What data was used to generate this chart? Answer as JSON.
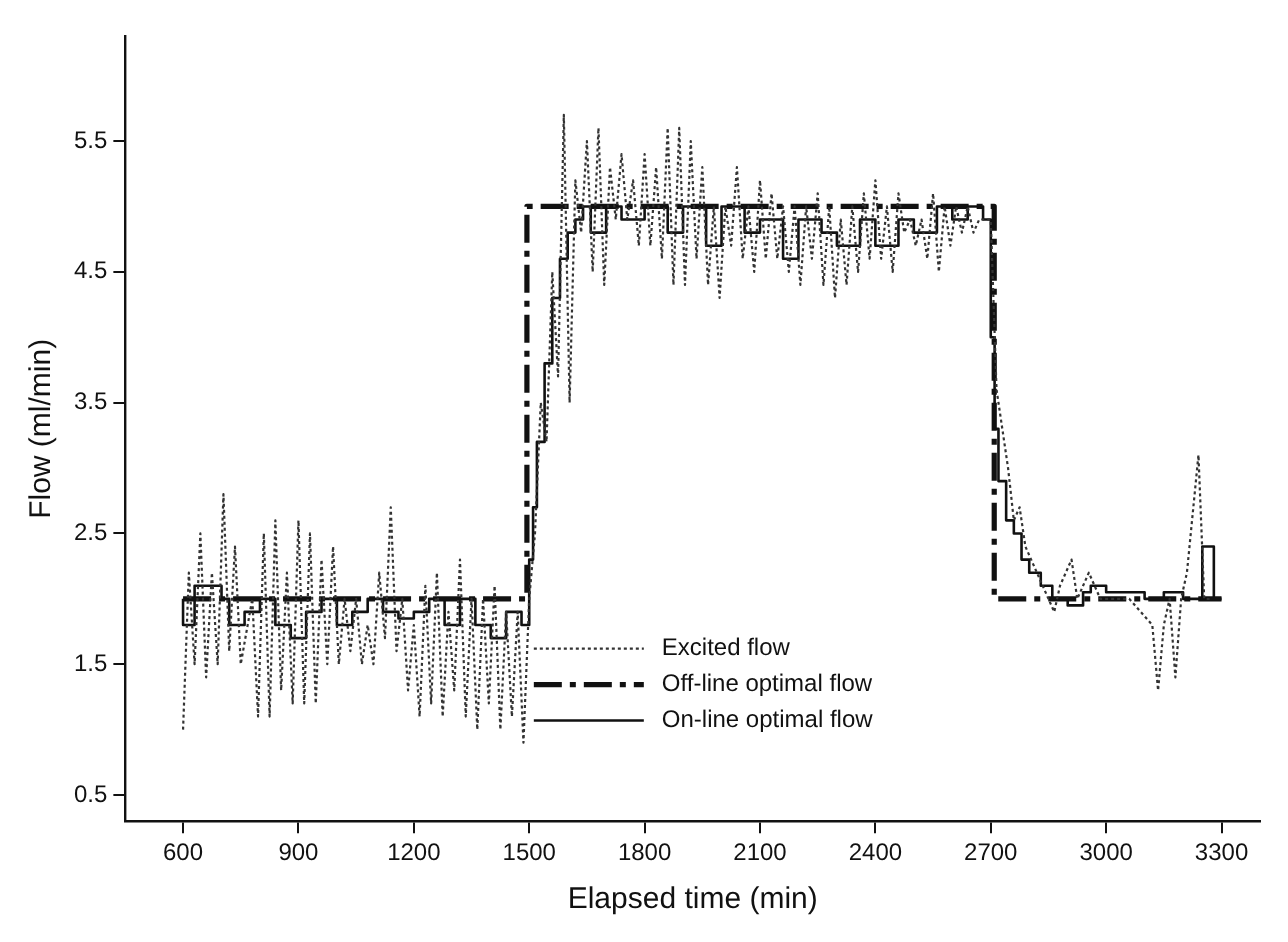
{
  "chart_data": {
    "type": "line",
    "xlabel": "Elapsed time (min)",
    "ylabel": "Flow (ml/min)",
    "xlim": [
      450,
      3400
    ],
    "ylim": [
      0.3,
      6.3
    ],
    "xticks": [
      600,
      900,
      1200,
      1500,
      1800,
      2100,
      2400,
      2700,
      3000,
      3300
    ],
    "yticks": [
      0.5,
      1.5,
      2.5,
      3.5,
      4.5,
      5.5
    ],
    "grid": false,
    "legend": "bottom right",
    "marker": "none",
    "series": [
      {
        "name": "Excited flow",
        "color": "#333333",
        "line_style": "dotted",
        "x": [
          600,
          615,
          630,
          645,
          660,
          675,
          690,
          705,
          720,
          735,
          750,
          780,
          795,
          810,
          825,
          840,
          855,
          870,
          885,
          900,
          915,
          930,
          945,
          960,
          975,
          990,
          1005,
          1020,
          1035,
          1050,
          1065,
          1080,
          1095,
          1110,
          1125,
          1140,
          1155,
          1170,
          1185,
          1200,
          1215,
          1230,
          1245,
          1260,
          1275,
          1290,
          1305,
          1320,
          1335,
          1350,
          1365,
          1380,
          1395,
          1410,
          1425,
          1440,
          1455,
          1470,
          1485,
          1500,
          1515,
          1530,
          1545,
          1560,
          1575,
          1590,
          1605,
          1620,
          1635,
          1650,
          1665,
          1680,
          1695,
          1710,
          1725,
          1740,
          1755,
          1770,
          1785,
          1800,
          1815,
          1830,
          1845,
          1860,
          1875,
          1890,
          1905,
          1920,
          1935,
          1950,
          1965,
          1980,
          1995,
          2010,
          2025,
          2040,
          2055,
          2070,
          2085,
          2100,
          2115,
          2130,
          2145,
          2160,
          2175,
          2190,
          2205,
          2220,
          2235,
          2250,
          2265,
          2280,
          2295,
          2310,
          2325,
          2340,
          2355,
          2370,
          2385,
          2400,
          2415,
          2430,
          2445,
          2460,
          2475,
          2490,
          2505,
          2520,
          2535,
          2550,
          2565,
          2580,
          2595,
          2610,
          2625,
          2640,
          2655,
          2670,
          2685,
          2700,
          2715,
          2730,
          2745,
          2760,
          2775,
          2790,
          2805,
          2820,
          2835,
          2850,
          2865,
          2880,
          2895,
          2910,
          2925,
          2940,
          2955,
          2970,
          2985,
          3000,
          3030,
          3060,
          3090,
          3120,
          3135,
          3150,
          3165,
          3180,
          3195,
          3210,
          3240,
          3255,
          3270
        ],
        "values": [
          1.0,
          2.2,
          1.5,
          2.5,
          1.4,
          2.2,
          1.5,
          2.8,
          1.6,
          2.4,
          1.5,
          2.0,
          1.1,
          2.5,
          1.1,
          2.6,
          1.3,
          2.2,
          1.2,
          2.6,
          1.2,
          2.5,
          1.2,
          2.3,
          1.5,
          2.4,
          1.5,
          2.0,
          1.6,
          2.0,
          1.5,
          1.8,
          1.5,
          2.2,
          1.7,
          2.7,
          1.6,
          2.0,
          1.3,
          1.8,
          1.1,
          2.1,
          1.2,
          2.2,
          1.1,
          1.9,
          1.3,
          2.3,
          1.1,
          2.0,
          1.0,
          2.0,
          1.2,
          2.1,
          1.0,
          1.9,
          1.1,
          1.9,
          0.9,
          2.0,
          2.5,
          3.5,
          3.2,
          4.5,
          3.7,
          5.7,
          3.5,
          5.2,
          4.8,
          5.5,
          4.5,
          5.6,
          4.4,
          5.3,
          4.9,
          5.4,
          4.9,
          5.2,
          4.7,
          5.4,
          4.7,
          5.3,
          4.6,
          5.6,
          4.4,
          5.6,
          4.4,
          5.5,
          4.6,
          5.3,
          4.4,
          5.0,
          4.3,
          5.0,
          4.7,
          5.3,
          4.6,
          5.0,
          4.5,
          5.2,
          4.6,
          5.1,
          4.6,
          5.0,
          4.5,
          5.0,
          4.4,
          5.0,
          4.6,
          5.1,
          4.4,
          5.0,
          4.3,
          4.9,
          4.4,
          5.0,
          4.5,
          5.1,
          4.6,
          5.2,
          4.6,
          5.0,
          4.5,
          5.1,
          4.8,
          4.9,
          4.7,
          4.9,
          4.6,
          5.1,
          4.5,
          5.0,
          4.7,
          5.0,
          4.8,
          5.0,
          4.8,
          4.9,
          4.9,
          4.9,
          3.6,
          3.3,
          3.0,
          2.6,
          2.7,
          2.4,
          2.3,
          2.2,
          2.1,
          2.0,
          1.9,
          2.1,
          2.2,
          2.3,
          2.0,
          2.1,
          2.2,
          2.1,
          2.0,
          2.0,
          2.0,
          2.0,
          1.9,
          1.8,
          1.3,
          1.8,
          2.0,
          1.4,
          2.0,
          2.2,
          3.1,
          2.0,
          2.0
        ]
      },
      {
        "name": "Off-line optimal flow",
        "color": "#111111",
        "line_style": "dashed",
        "x": [
          600,
          1494,
          1494,
          2709,
          2709,
          3300
        ],
        "values": [
          2.0,
          2.0,
          5.0,
          5.0,
          2.0,
          2.0
        ]
      },
      {
        "name": "On-line optimal flow",
        "color": "#111111",
        "line_style": "solid",
        "type": "step",
        "x": [
          600,
          630,
          660,
          700,
          720,
          760,
          800,
          840,
          880,
          920,
          960,
          1000,
          1040,
          1080,
          1120,
          1160,
          1200,
          1240,
          1280,
          1320,
          1360,
          1400,
          1440,
          1480,
          1500,
          1510,
          1520,
          1540,
          1560,
          1580,
          1600,
          1620,
          1640,
          1660,
          1700,
          1740,
          1800,
          1860,
          1900,
          1960,
          2000,
          2060,
          2100,
          2160,
          2200,
          2260,
          2300,
          2360,
          2400,
          2460,
          2500,
          2560,
          2600,
          2640,
          2680,
          2700,
          2710,
          2720,
          2740,
          2760,
          2780,
          2800,
          2830,
          2860,
          2900,
          2940,
          2960,
          3000,
          3100,
          3150,
          3200,
          3250,
          3280,
          3300
        ],
        "values": [
          2.0,
          1.8,
          2.1,
          2.1,
          2.0,
          1.8,
          1.9,
          2.0,
          1.8,
          1.7,
          1.9,
          2.0,
          1.8,
          1.9,
          2.0,
          1.9,
          1.85,
          1.9,
          2.0,
          1.8,
          2.0,
          1.8,
          1.7,
          1.9,
          1.8,
          2.3,
          2.7,
          3.2,
          3.8,
          4.3,
          4.6,
          4.8,
          4.9,
          5.0,
          4.8,
          5.0,
          4.9,
          5.0,
          4.8,
          5.0,
          4.7,
          5.0,
          4.8,
          4.9,
          4.6,
          4.9,
          4.8,
          4.7,
          4.9,
          4.7,
          4.9,
          4.8,
          5.0,
          4.9,
          5.0,
          4.9,
          4.0,
          3.3,
          2.9,
          2.6,
          2.5,
          2.3,
          2.2,
          2.1,
          2.0,
          1.95,
          2.05,
          2.1,
          2.05,
          2.0,
          2.05,
          2.0,
          2.4,
          2.0
        ]
      }
    ]
  }
}
